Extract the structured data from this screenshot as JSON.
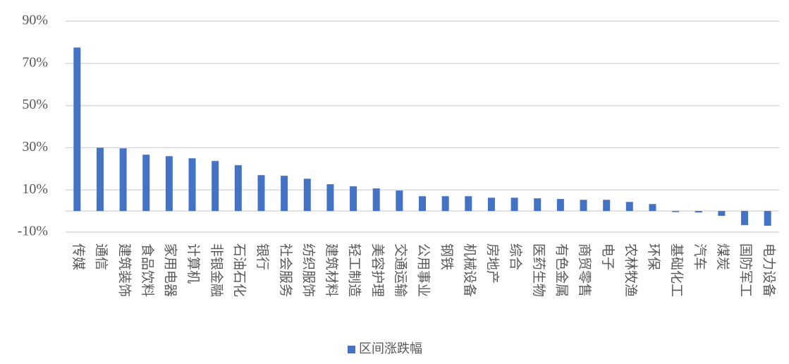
{
  "chart_data": {
    "type": "bar",
    "categories": [
      "传媒",
      "通信",
      "建筑装饰",
      "食品饮料",
      "家用电器",
      "计算机",
      "非银金融",
      "石油石化",
      "银行",
      "社会服务",
      "纺织服饰",
      "建筑材料",
      "轻工制造",
      "美容护理",
      "交通运输",
      "公用事业",
      "钢铁",
      "机械设备",
      "房地产",
      "综合",
      "医药生物",
      "有色金属",
      "商贸零售",
      "电子",
      "农林牧渔",
      "环保",
      "基础化工",
      "汽车",
      "煤炭",
      "国防军工",
      "电力设备"
    ],
    "series": [
      {
        "name": "区间涨跌幅",
        "color": "#4472c4",
        "values": [
          77.5,
          30,
          29.7,
          26.7,
          26,
          25,
          23.7,
          21.7,
          17,
          16.7,
          15.3,
          12.7,
          11.7,
          10.7,
          9.7,
          7,
          7,
          7,
          6.3,
          6.3,
          6,
          5.7,
          5.3,
          5.3,
          4.3,
          3.3,
          -0.5,
          -0.7,
          -2.3,
          -6.7,
          -7
        ]
      }
    ],
    "ylim": [
      -10,
      90
    ],
    "yticks": [
      {
        "value": -10,
        "label": "-10%"
      },
      {
        "value": 10,
        "label": "10%"
      },
      {
        "value": 30,
        "label": "30%"
      },
      {
        "value": 50,
        "label": "50%"
      },
      {
        "value": 70,
        "label": "70%"
      },
      {
        "value": 90,
        "label": "90%"
      }
    ],
    "grid": true,
    "legend": "bottom"
  }
}
